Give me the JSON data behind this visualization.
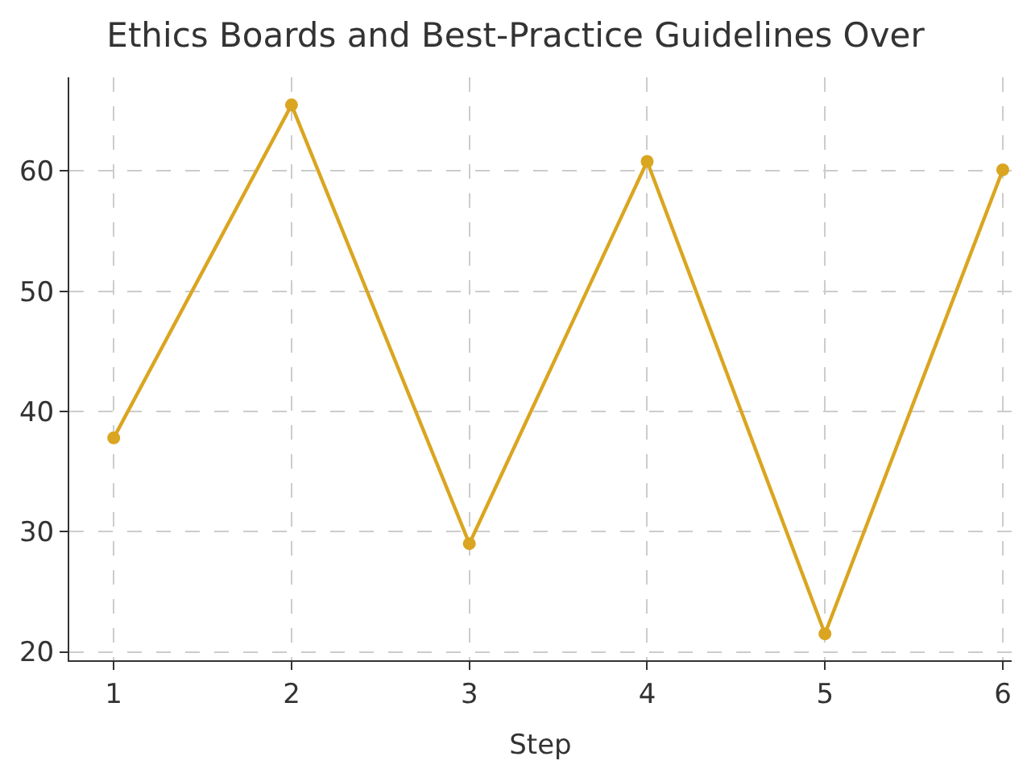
{
  "chart_data": {
    "type": "line",
    "title": "Ethics Boards and Best-Practice Guidelines Over",
    "xlabel": "Step",
    "x": [
      1,
      2,
      3,
      4,
      5,
      6
    ],
    "series": [
      {
        "color": "#daa520",
        "values": [
          37.8,
          65.5,
          29.0,
          60.8,
          21.5,
          60.1
        ]
      }
    ],
    "xlim": [
      0.75,
      6.05
    ],
    "xticks": [
      1,
      2,
      3,
      4,
      5,
      6
    ],
    "ylim": [
      19.3,
      67.8
    ],
    "yticks": [
      20,
      30,
      40,
      50,
      60
    ],
    "grid": true,
    "marker": "circle",
    "line_style": "solid",
    "legend": false
  }
}
